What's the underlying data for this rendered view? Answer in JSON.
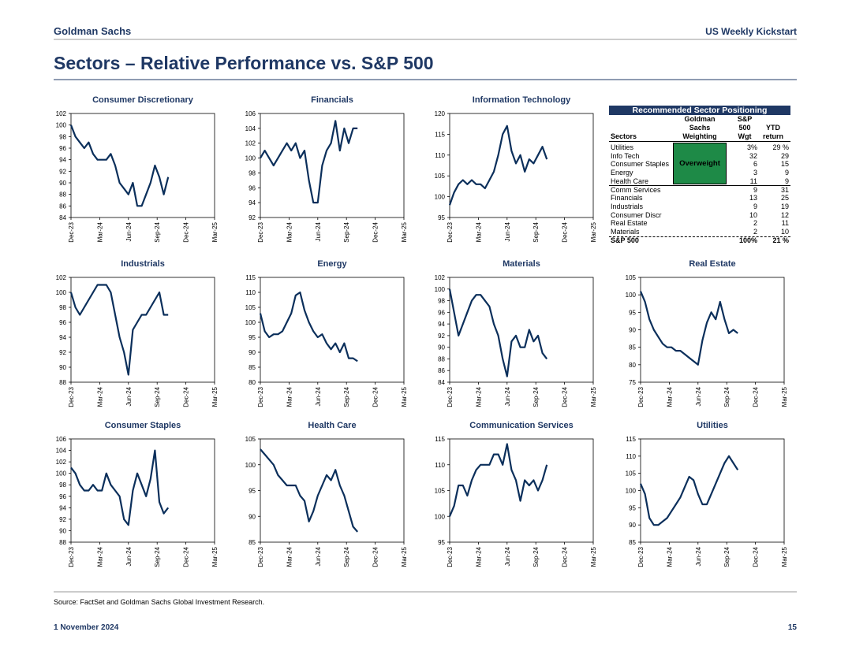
{
  "header": {
    "brand": "Goldman Sachs",
    "report": "US Weekly Kickstart"
  },
  "title": "Sectors – Relative Performance vs. S&P 500",
  "chart_data": [
    {
      "type": "line",
      "title": "Consumer Discretionary",
      "x": [
        0,
        2,
        4,
        6,
        8,
        10,
        12,
        14,
        16,
        18,
        20,
        22,
        24,
        26,
        28,
        30,
        32,
        34,
        36,
        38,
        40,
        42,
        44
      ],
      "values": [
        100,
        98,
        97,
        96,
        97,
        95,
        94,
        94,
        94,
        95,
        93,
        90,
        89,
        88,
        90,
        86,
        86,
        88,
        90,
        93,
        91,
        88,
        91
      ],
      "color": "#0b2f5b",
      "xlim": [
        0,
        65
      ],
      "xticks": [
        {
          "value": 0,
          "label": "Dec-23"
        },
        {
          "value": 13,
          "label": "Mar-24"
        },
        {
          "value": 26,
          "label": "Jun-24"
        },
        {
          "value": 39,
          "label": "Sep-24"
        },
        {
          "value": 52,
          "label": "Dec-24"
        },
        {
          "value": 65,
          "label": "Mar-25"
        }
      ],
      "ylim": [
        84,
        102
      ],
      "yticks": [
        84,
        86,
        88,
        90,
        92,
        94,
        96,
        98,
        100,
        102
      ]
    },
    {
      "type": "line",
      "title": "Financials",
      "x": [
        0,
        2,
        4,
        6,
        8,
        10,
        12,
        14,
        16,
        18,
        20,
        22,
        24,
        26,
        28,
        30,
        32,
        34,
        36,
        38,
        40,
        42,
        44
      ],
      "values": [
        100,
        101,
        100,
        99,
        100,
        101,
        102,
        101,
        102,
        100,
        101,
        97,
        94,
        94,
        99,
        101,
        102,
        105,
        101,
        104,
        102,
        104,
        104
      ],
      "color": "#0b2f5b",
      "xlim": [
        0,
        65
      ],
      "xticks": [
        {
          "value": 0,
          "label": "Dec-23"
        },
        {
          "value": 13,
          "label": "Mar-24"
        },
        {
          "value": 26,
          "label": "Jun-24"
        },
        {
          "value": 39,
          "label": "Sep-24"
        },
        {
          "value": 52,
          "label": "Dec-24"
        },
        {
          "value": 65,
          "label": "Mar-25"
        }
      ],
      "ylim": [
        92,
        106
      ],
      "yticks": [
        92,
        94,
        96,
        98,
        100,
        102,
        104,
        106
      ]
    },
    {
      "type": "line",
      "title": "Information Technology",
      "x": [
        0,
        2,
        4,
        6,
        8,
        10,
        12,
        14,
        16,
        18,
        20,
        22,
        24,
        26,
        28,
        30,
        32,
        34,
        36,
        38,
        40,
        42,
        44
      ],
      "values": [
        98,
        101,
        103,
        104,
        103,
        104,
        103,
        103,
        102,
        104,
        106,
        110,
        115,
        117,
        111,
        108,
        110,
        106,
        109,
        108,
        110,
        112,
        109
      ],
      "color": "#0b2f5b",
      "xlim": [
        0,
        65
      ],
      "xticks": [
        {
          "value": 0,
          "label": "Dec-23"
        },
        {
          "value": 13,
          "label": "Mar-24"
        },
        {
          "value": 26,
          "label": "Jun-24"
        },
        {
          "value": 39,
          "label": "Sep-24"
        },
        {
          "value": 52,
          "label": "Dec-24"
        },
        {
          "value": 65,
          "label": "Mar-25"
        }
      ],
      "ylim": [
        95,
        120
      ],
      "yticks": [
        95,
        100,
        105,
        110,
        115,
        120
      ]
    },
    {
      "type": "line",
      "title": "Industrials",
      "x": [
        0,
        2,
        4,
        6,
        8,
        10,
        12,
        14,
        16,
        18,
        20,
        22,
        24,
        26,
        28,
        30,
        32,
        34,
        36,
        38,
        40,
        42,
        44
      ],
      "values": [
        100,
        98,
        97,
        98,
        99,
        100,
        101,
        101,
        101,
        100,
        97,
        94,
        92,
        89,
        95,
        96,
        97,
        97,
        98,
        99,
        100,
        97,
        97
      ],
      "color": "#0b2f5b",
      "xlim": [
        0,
        65
      ],
      "xticks": [
        {
          "value": 0,
          "label": "Dec-23"
        },
        {
          "value": 13,
          "label": "Mar-24"
        },
        {
          "value": 26,
          "label": "Jun-24"
        },
        {
          "value": 39,
          "label": "Sep-24"
        },
        {
          "value": 52,
          "label": "Dec-24"
        },
        {
          "value": 65,
          "label": "Mar-25"
        }
      ],
      "ylim": [
        88,
        102
      ],
      "yticks": [
        88,
        90,
        92,
        94,
        96,
        98,
        100,
        102
      ]
    },
    {
      "type": "line",
      "title": "Energy",
      "x": [
        0,
        2,
        4,
        6,
        8,
        10,
        12,
        14,
        16,
        18,
        20,
        22,
        24,
        26,
        28,
        30,
        32,
        34,
        36,
        38,
        40,
        42,
        44
      ],
      "values": [
        103,
        97,
        95,
        96,
        96,
        97,
        100,
        103,
        109,
        110,
        104,
        100,
        97,
        95,
        96,
        93,
        91,
        93,
        90,
        93,
        88,
        88,
        87
      ],
      "color": "#0b2f5b",
      "xlim": [
        0,
        65
      ],
      "xticks": [
        {
          "value": 0,
          "label": "Dec-23"
        },
        {
          "value": 13,
          "label": "Mar-24"
        },
        {
          "value": 26,
          "label": "Jun-24"
        },
        {
          "value": 39,
          "label": "Sep-24"
        },
        {
          "value": 52,
          "label": "Dec-24"
        },
        {
          "value": 65,
          "label": "Mar-25"
        }
      ],
      "ylim": [
        80,
        115
      ],
      "yticks": [
        80,
        85,
        90,
        95,
        100,
        105,
        110,
        115
      ]
    },
    {
      "type": "line",
      "title": "Materials",
      "x": [
        0,
        2,
        4,
        6,
        8,
        10,
        12,
        14,
        16,
        18,
        20,
        22,
        24,
        26,
        28,
        30,
        32,
        34,
        36,
        38,
        40,
        42,
        44
      ],
      "values": [
        100,
        96,
        92,
        94,
        96,
        98,
        99,
        99,
        98,
        97,
        94,
        92,
        88,
        85,
        91,
        92,
        90,
        90,
        93,
        91,
        92,
        89,
        88
      ],
      "color": "#0b2f5b",
      "xlim": [
        0,
        65
      ],
      "xticks": [
        {
          "value": 0,
          "label": "Dec-23"
        },
        {
          "value": 13,
          "label": "Mar-24"
        },
        {
          "value": 26,
          "label": "Jun-24"
        },
        {
          "value": 39,
          "label": "Sep-24"
        },
        {
          "value": 52,
          "label": "Dec-24"
        },
        {
          "value": 65,
          "label": "Mar-25"
        }
      ],
      "ylim": [
        84,
        102
      ],
      "yticks": [
        84,
        86,
        88,
        90,
        92,
        94,
        96,
        98,
        100,
        102
      ]
    },
    {
      "type": "line",
      "title": "Real Estate",
      "x": [
        0,
        2,
        4,
        6,
        8,
        10,
        12,
        14,
        16,
        18,
        20,
        22,
        24,
        26,
        28,
        30,
        32,
        34,
        36,
        38,
        40,
        42,
        44
      ],
      "values": [
        101,
        98,
        93,
        90,
        88,
        86,
        85,
        85,
        84,
        84,
        83,
        82,
        81,
        80,
        87,
        92,
        95,
        93,
        98,
        93,
        89,
        90,
        89
      ],
      "color": "#0b2f5b",
      "xlim": [
        0,
        65
      ],
      "xticks": [
        {
          "value": 0,
          "label": "Dec-23"
        },
        {
          "value": 13,
          "label": "Mar-24"
        },
        {
          "value": 26,
          "label": "Jun-24"
        },
        {
          "value": 39,
          "label": "Sep-24"
        },
        {
          "value": 52,
          "label": "Dec-24"
        },
        {
          "value": 65,
          "label": "Mar-25"
        }
      ],
      "ylim": [
        75,
        105
      ],
      "yticks": [
        75,
        80,
        85,
        90,
        95,
        100,
        105
      ]
    },
    {
      "type": "line",
      "title": "Consumer Staples",
      "x": [
        0,
        2,
        4,
        6,
        8,
        10,
        12,
        14,
        16,
        18,
        20,
        22,
        24,
        26,
        28,
        30,
        32,
        34,
        36,
        38,
        40,
        42,
        44
      ],
      "values": [
        101,
        100,
        98,
        97,
        97,
        98,
        97,
        97,
        100,
        98,
        97,
        96,
        92,
        91,
        97,
        100,
        98,
        96,
        99,
        104,
        95,
        93,
        94
      ],
      "color": "#0b2f5b",
      "xlim": [
        0,
        65
      ],
      "xticks": [
        {
          "value": 0,
          "label": "Dec-23"
        },
        {
          "value": 13,
          "label": "Mar-24"
        },
        {
          "value": 26,
          "label": "Jun-24"
        },
        {
          "value": 39,
          "label": "Sep-24"
        },
        {
          "value": 52,
          "label": "Dec-24"
        },
        {
          "value": 65,
          "label": "Mar-25"
        }
      ],
      "ylim": [
        88,
        106
      ],
      "yticks": [
        88,
        90,
        92,
        94,
        96,
        98,
        100,
        102,
        104,
        106
      ]
    },
    {
      "type": "line",
      "title": "Health Care",
      "x": [
        0,
        2,
        4,
        6,
        8,
        10,
        12,
        14,
        16,
        18,
        20,
        22,
        24,
        26,
        28,
        30,
        32,
        34,
        36,
        38,
        40,
        42,
        44
      ],
      "values": [
        103,
        102,
        101,
        100,
        98,
        97,
        96,
        96,
        96,
        94,
        93,
        89,
        91,
        94,
        96,
        98,
        97,
        99,
        96,
        94,
        91,
        88,
        87
      ],
      "color": "#0b2f5b",
      "xlim": [
        0,
        65
      ],
      "xticks": [
        {
          "value": 0,
          "label": "Dec-23"
        },
        {
          "value": 13,
          "label": "Mar-24"
        },
        {
          "value": 26,
          "label": "Jun-24"
        },
        {
          "value": 39,
          "label": "Sep-24"
        },
        {
          "value": 52,
          "label": "Dec-24"
        },
        {
          "value": 65,
          "label": "Mar-25"
        }
      ],
      "ylim": [
        85,
        105
      ],
      "yticks": [
        85,
        90,
        95,
        100,
        105
      ]
    },
    {
      "type": "line",
      "title": "Communication Services",
      "x": [
        0,
        2,
        4,
        6,
        8,
        10,
        12,
        14,
        16,
        18,
        20,
        22,
        24,
        26,
        28,
        30,
        32,
        34,
        36,
        38,
        40,
        42,
        44
      ],
      "values": [
        100,
        102,
        106,
        106,
        104,
        107,
        109,
        110,
        110,
        110,
        112,
        112,
        110,
        114,
        109,
        107,
        103,
        107,
        106,
        107,
        105,
        107,
        110
      ],
      "color": "#0b2f5b",
      "xlim": [
        0,
        65
      ],
      "xticks": [
        {
          "value": 0,
          "label": "Dec-23"
        },
        {
          "value": 13,
          "label": "Mar-24"
        },
        {
          "value": 26,
          "label": "Jun-24"
        },
        {
          "value": 39,
          "label": "Sep-24"
        },
        {
          "value": 52,
          "label": "Dec-24"
        },
        {
          "value": 65,
          "label": "Mar-25"
        }
      ],
      "ylim": [
        95,
        115
      ],
      "yticks": [
        95,
        100,
        105,
        110,
        115
      ]
    },
    {
      "type": "line",
      "title": "Utilities",
      "x": [
        0,
        2,
        4,
        6,
        8,
        10,
        12,
        14,
        16,
        18,
        20,
        22,
        24,
        26,
        28,
        30,
        32,
        34,
        36,
        38,
        40,
        42,
        44
      ],
      "values": [
        102,
        99,
        92,
        90,
        90,
        91,
        92,
        94,
        96,
        98,
        101,
        104,
        103,
        99,
        96,
        96,
        99,
        102,
        105,
        108,
        110,
        108,
        106
      ],
      "color": "#0b2f5b",
      "xlim": [
        0,
        65
      ],
      "xticks": [
        {
          "value": 0,
          "label": "Dec-23"
        },
        {
          "value": 13,
          "label": "Mar-24"
        },
        {
          "value": 26,
          "label": "Jun-24"
        },
        {
          "value": 39,
          "label": "Sep-24"
        },
        {
          "value": 52,
          "label": "Dec-24"
        },
        {
          "value": 65,
          "label": "Mar-25"
        }
      ],
      "ylim": [
        85,
        115
      ],
      "yticks": [
        85,
        90,
        95,
        100,
        105,
        110,
        115
      ]
    }
  ],
  "table": {
    "title": "Recommended Sector Positioning",
    "columns": [
      "Sectors",
      [
        "Goldman",
        "Sachs",
        "Weighting"
      ],
      [
        "S&P",
        "500",
        "Wgt"
      ],
      [
        "YTD",
        "return"
      ]
    ],
    "weighting": "Overweight",
    "rows": [
      [
        "Utilities",
        "3%",
        "29 %"
      ],
      [
        "Info Tech",
        "32",
        "29"
      ],
      [
        "Consumer Staples",
        "6",
        "15"
      ],
      [
        "Energy",
        "3",
        "9"
      ],
      [
        "Health Care",
        "11",
        "9"
      ],
      [
        "Comm Services",
        "9",
        "31"
      ],
      [
        "Financials",
        "13",
        "25"
      ],
      [
        "Industrials",
        "9",
        "19"
      ],
      [
        "Consumer Discr",
        "10",
        "12"
      ],
      [
        "Real Estate",
        "2",
        "11"
      ],
      [
        "Materials",
        "2",
        "10"
      ],
      [
        "S&P 500",
        "100%",
        "21 %"
      ]
    ]
  },
  "source": "Source: FactSet and Goldman Sachs Global Investment Research.",
  "footer": {
    "date": "1 November 2024",
    "page": "15"
  }
}
